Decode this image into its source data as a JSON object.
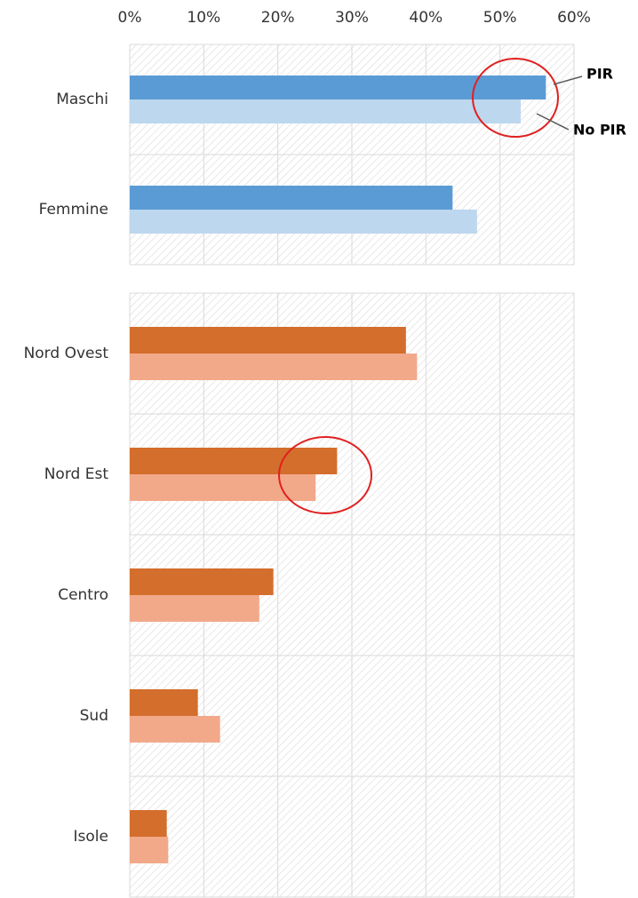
{
  "chart_data": [
    {
      "type": "hbar",
      "categories": [
        "Maschi",
        "Femmine"
      ],
      "series": [
        {
          "name": "PIR",
          "color": "#5b9bd5",
          "values": [
            56.2,
            43.6
          ]
        },
        {
          "name": "No PIR",
          "color": "#bdd7ee",
          "values": [
            52.8,
            46.9
          ]
        }
      ],
      "xlim": [
        0,
        60
      ],
      "xticks": [
        {
          "value": 0,
          "label": "0%"
        },
        {
          "value": 10,
          "label": "10%"
        },
        {
          "value": 20,
          "label": "20%"
        },
        {
          "value": 30,
          "label": "30%"
        },
        {
          "value": 40,
          "label": "40%"
        },
        {
          "value": 50,
          "label": "50%"
        },
        {
          "value": 60,
          "label": "60%"
        }
      ],
      "grid": true
    },
    {
      "type": "hbar",
      "categories": [
        "Nord Ovest",
        "Nord Est",
        "Centro",
        "Sud",
        "Isole"
      ],
      "series": [
        {
          "color": "#d46e2c",
          "values": [
            37.3,
            28.0,
            19.4,
            9.2,
            5.0
          ]
        },
        {
          "color": "#f2a98a",
          "values": [
            38.8,
            25.1,
            17.5,
            12.2,
            5.2
          ]
        }
      ],
      "xlim": [
        0,
        60
      ],
      "xticks": [
        0,
        10,
        20,
        30,
        40,
        50,
        60
      ],
      "grid": true
    }
  ]
}
